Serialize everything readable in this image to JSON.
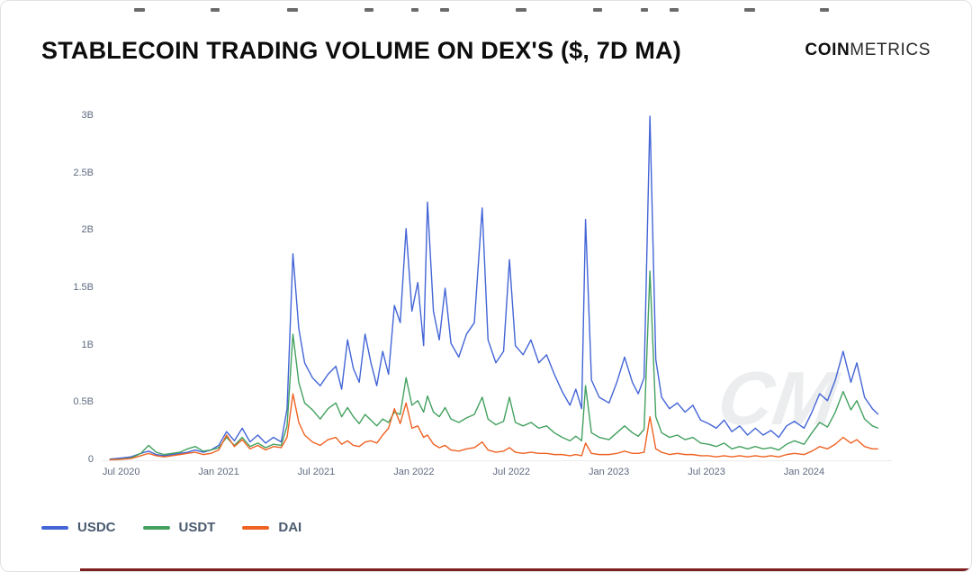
{
  "header": {
    "title": "STABLECOIN TRADING VOLUME ON DEX'S ($, 7D MA)",
    "brand_bold": "COIN",
    "brand_light": "METRICS"
  },
  "chart_data": {
    "type": "line",
    "title": "STABLECOIN TRADING VOLUME ON DEX'S ($, 7D MA)",
    "xlabel": "",
    "ylabel": "",
    "grid": false,
    "legend_position": "bottom-left",
    "xlim": [
      2020.4,
      2024.45
    ],
    "ylim": [
      0,
      3
    ],
    "yticks": [
      {
        "v": 0,
        "label": "0"
      },
      {
        "v": 0.5,
        "label": "0.5B"
      },
      {
        "v": 1,
        "label": "1B"
      },
      {
        "v": 1.5,
        "label": "1.5B"
      },
      {
        "v": 2,
        "label": "2B"
      },
      {
        "v": 2.5,
        "label": "2.5B"
      },
      {
        "v": 3,
        "label": "3B"
      }
    ],
    "xticks": [
      {
        "v": 2020.5,
        "label": "Jul 2020"
      },
      {
        "v": 2021.0,
        "label": "Jan 2021"
      },
      {
        "v": 2021.5,
        "label": "Jul 2021"
      },
      {
        "v": 2022.0,
        "label": "Jan 2022"
      },
      {
        "v": 2022.5,
        "label": "Jul 2022"
      },
      {
        "v": 2023.0,
        "label": "Jan 2023"
      },
      {
        "v": 2023.5,
        "label": "Jul 2023"
      },
      {
        "v": 2024.0,
        "label": "Jan 2024"
      }
    ],
    "x": [
      2020.44,
      2020.5,
      2020.55,
      2020.6,
      2020.64,
      2020.68,
      2020.72,
      2020.76,
      2020.8,
      2020.84,
      2020.88,
      2020.92,
      2020.96,
      2021.0,
      2021.04,
      2021.08,
      2021.12,
      2021.16,
      2021.2,
      2021.24,
      2021.28,
      2021.32,
      2021.35,
      2021.38,
      2021.41,
      2021.44,
      2021.48,
      2021.52,
      2021.56,
      2021.6,
      2021.63,
      2021.66,
      2021.69,
      2021.72,
      2021.75,
      2021.78,
      2021.81,
      2021.84,
      2021.87,
      2021.9,
      2021.93,
      2021.96,
      2021.99,
      2022.02,
      2022.05,
      2022.07,
      2022.1,
      2022.13,
      2022.16,
      2022.19,
      2022.23,
      2022.27,
      2022.31,
      2022.35,
      2022.38,
      2022.42,
      2022.46,
      2022.49,
      2022.52,
      2022.56,
      2022.6,
      2022.64,
      2022.68,
      2022.72,
      2022.76,
      2022.8,
      2022.83,
      2022.86,
      2022.88,
      2022.91,
      2022.95,
      2023.0,
      2023.04,
      2023.08,
      2023.12,
      2023.15,
      2023.18,
      2023.21,
      2023.24,
      2023.27,
      2023.31,
      2023.35,
      2023.39,
      2023.43,
      2023.47,
      2023.51,
      2023.55,
      2023.59,
      2023.63,
      2023.67,
      2023.71,
      2023.75,
      2023.79,
      2023.83,
      2023.87,
      2023.91,
      2023.95,
      2024.0,
      2024.04,
      2024.08,
      2024.12,
      2024.16,
      2024.2,
      2024.24,
      2024.27,
      2024.31,
      2024.35,
      2024.38
    ],
    "series": [
      {
        "name": "USDC",
        "color": "#4365d6",
        "values": [
          0.01,
          0.02,
          0.03,
          0.06,
          0.08,
          0.05,
          0.04,
          0.05,
          0.06,
          0.07,
          0.09,
          0.07,
          0.09,
          0.13,
          0.25,
          0.17,
          0.28,
          0.16,
          0.22,
          0.15,
          0.2,
          0.16,
          0.45,
          1.8,
          1.15,
          0.85,
          0.72,
          0.65,
          0.75,
          0.82,
          0.62,
          1.05,
          0.8,
          0.68,
          1.1,
          0.85,
          0.65,
          0.95,
          0.75,
          1.35,
          1.2,
          2.02,
          1.3,
          1.55,
          1.0,
          2.25,
          1.3,
          1.05,
          1.5,
          1.02,
          0.9,
          1.1,
          1.2,
          2.2,
          1.05,
          0.85,
          0.95,
          1.75,
          1.0,
          0.92,
          1.05,
          0.85,
          0.92,
          0.75,
          0.6,
          0.48,
          0.62,
          0.45,
          2.1,
          0.7,
          0.55,
          0.5,
          0.68,
          0.9,
          0.68,
          0.58,
          0.72,
          3.0,
          0.88,
          0.55,
          0.45,
          0.5,
          0.42,
          0.48,
          0.35,
          0.32,
          0.28,
          0.35,
          0.25,
          0.3,
          0.22,
          0.28,
          0.22,
          0.26,
          0.2,
          0.3,
          0.34,
          0.28,
          0.42,
          0.58,
          0.52,
          0.7,
          0.95,
          0.68,
          0.85,
          0.55,
          0.45,
          0.4
        ]
      },
      {
        "name": "USDT",
        "color": "#43a15f",
        "values": [
          0.005,
          0.01,
          0.02,
          0.06,
          0.13,
          0.07,
          0.05,
          0.06,
          0.07,
          0.1,
          0.12,
          0.08,
          0.09,
          0.11,
          0.2,
          0.13,
          0.2,
          0.12,
          0.15,
          0.11,
          0.14,
          0.13,
          0.3,
          1.1,
          0.68,
          0.5,
          0.44,
          0.36,
          0.45,
          0.5,
          0.38,
          0.46,
          0.38,
          0.32,
          0.4,
          0.35,
          0.3,
          0.36,
          0.33,
          0.42,
          0.4,
          0.72,
          0.48,
          0.52,
          0.42,
          0.56,
          0.42,
          0.38,
          0.46,
          0.36,
          0.33,
          0.37,
          0.4,
          0.55,
          0.36,
          0.31,
          0.34,
          0.55,
          0.33,
          0.3,
          0.33,
          0.28,
          0.3,
          0.24,
          0.2,
          0.17,
          0.21,
          0.17,
          0.65,
          0.24,
          0.2,
          0.18,
          0.24,
          0.3,
          0.24,
          0.21,
          0.27,
          1.65,
          0.38,
          0.24,
          0.2,
          0.22,
          0.18,
          0.2,
          0.15,
          0.14,
          0.12,
          0.15,
          0.1,
          0.12,
          0.1,
          0.12,
          0.1,
          0.11,
          0.09,
          0.14,
          0.17,
          0.14,
          0.24,
          0.33,
          0.29,
          0.42,
          0.6,
          0.44,
          0.52,
          0.36,
          0.3,
          0.28
        ]
      },
      {
        "name": "DAI",
        "color": "#ee6223",
        "values": [
          0.005,
          0.008,
          0.015,
          0.04,
          0.06,
          0.04,
          0.03,
          0.04,
          0.05,
          0.06,
          0.07,
          0.05,
          0.06,
          0.09,
          0.22,
          0.12,
          0.18,
          0.1,
          0.13,
          0.09,
          0.12,
          0.11,
          0.2,
          0.58,
          0.33,
          0.22,
          0.16,
          0.13,
          0.18,
          0.2,
          0.14,
          0.17,
          0.13,
          0.12,
          0.16,
          0.17,
          0.15,
          0.22,
          0.28,
          0.45,
          0.32,
          0.5,
          0.28,
          0.3,
          0.2,
          0.22,
          0.14,
          0.11,
          0.13,
          0.09,
          0.08,
          0.1,
          0.11,
          0.16,
          0.09,
          0.07,
          0.08,
          0.11,
          0.07,
          0.06,
          0.07,
          0.06,
          0.06,
          0.05,
          0.05,
          0.04,
          0.05,
          0.04,
          0.15,
          0.06,
          0.05,
          0.05,
          0.06,
          0.08,
          0.06,
          0.06,
          0.07,
          0.38,
          0.1,
          0.07,
          0.05,
          0.06,
          0.05,
          0.05,
          0.04,
          0.04,
          0.03,
          0.04,
          0.03,
          0.04,
          0.03,
          0.04,
          0.03,
          0.04,
          0.03,
          0.05,
          0.06,
          0.05,
          0.08,
          0.12,
          0.1,
          0.14,
          0.2,
          0.15,
          0.18,
          0.12,
          0.1,
          0.1
        ]
      }
    ],
    "watermark": "CM"
  }
}
